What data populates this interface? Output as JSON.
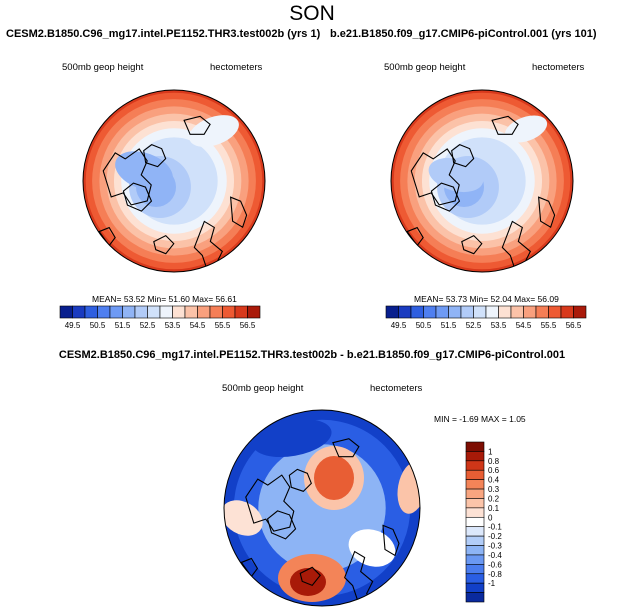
{
  "main_title": "SON",
  "panels": [
    {
      "title": "CESM2.B1850.C96_mg17.intel.PE1152.THR3.test002b (yrs 1)",
      "field_label": "500mb geop height",
      "units": "hectometers",
      "stats": "MEAN=  53.52  Min=  51.60  Max=  56.61",
      "colorbar_ticks": [
        "49.5",
        "50.5",
        "51.5",
        "52.5",
        "53.5",
        "54.5",
        "55.5",
        "56.5"
      ]
    },
    {
      "title": "b.e21.B1850.f09_g17.CMIP6-piControl.001 (yrs 101)",
      "field_label": "500mb geop height",
      "units": "hectometers",
      "stats": "MEAN=  53.73  Min=  52.04  Max=  56.09",
      "colorbar_ticks": [
        "49.5",
        "50.5",
        "51.5",
        "52.5",
        "53.5",
        "54.5",
        "55.5",
        "56.5"
      ]
    }
  ],
  "diff_panel": {
    "title": "CESM2.B1850.C96_mg17.intel.PE1152.THR3.test002b - b.e21.B1850.f09_g17.CMIP6-piControl.001",
    "field_label": "500mb geop height",
    "units": "hectometers",
    "stats": "MIN =  -1.69  MAX =    1.05",
    "colorbar_ticks": [
      "1",
      "0.8",
      "0.6",
      "0.4",
      "0.3",
      "0.2",
      "0.1",
      "0",
      "-0.1",
      "-0.2",
      "-0.3",
      "-0.4",
      "-0.6",
      "-0.8",
      "-1"
    ]
  },
  "chart_data": [
    {
      "type": "heatmap",
      "title": "CESM2.B1850.C96_mg17.intel.PE1152.THR3.test002b (yrs 1)",
      "variable": "500mb geop height",
      "units": "hectometers",
      "mean": 53.52,
      "min": 51.6,
      "max": 56.61,
      "levels": [
        49.5,
        50,
        50.5,
        51,
        51.5,
        52,
        52.5,
        53,
        53.5,
        54,
        54.5,
        55,
        55.5,
        56,
        56.5
      ],
      "colors": [
        "#081f8e",
        "#1a3bc0",
        "#2f5fe0",
        "#4f7ff0",
        "#6e9af4",
        "#90b4f6",
        "#b1cbf8",
        "#d0e1fa",
        "#eef4fc",
        "#fde1d3",
        "#fbc2a8",
        "#f9a07e",
        "#f57e56",
        "#ee5a33",
        "#d8391c",
        "#aa1a0a"
      ]
    },
    {
      "type": "heatmap",
      "title": "b.e21.B1850.f09_g17.CMIP6-piControl.001 (yrs 101)",
      "variable": "500mb geop height",
      "units": "hectometers",
      "mean": 53.73,
      "min": 52.04,
      "max": 56.09,
      "levels": [
        49.5,
        50,
        50.5,
        51,
        51.5,
        52,
        52.5,
        53,
        53.5,
        54,
        54.5,
        55,
        55.5,
        56,
        56.5
      ],
      "colors": [
        "#081f8e",
        "#1a3bc0",
        "#2f5fe0",
        "#4f7ff0",
        "#6e9af4",
        "#90b4f6",
        "#b1cbf8",
        "#d0e1fa",
        "#eef4fc",
        "#fde1d3",
        "#fbc2a8",
        "#f9a07e",
        "#f57e56",
        "#ee5a33",
        "#d8391c",
        "#aa1a0a"
      ]
    },
    {
      "type": "heatmap",
      "title": "CESM2.B1850.C96_mg17.intel.PE1152.THR3.test002b - b.e21.B1850.f09_g17.CMIP6-piControl.001",
      "variable": "500mb geop height",
      "units": "hectometers",
      "min": -1.69,
      "max": 1.05,
      "levels": [
        -1,
        -0.8,
        -0.6,
        -0.4,
        -0.3,
        -0.2,
        -0.1,
        0,
        0.1,
        0.2,
        0.3,
        0.4,
        0.6,
        0.8,
        1
      ],
      "colors": [
        "#0a2a9e",
        "#1240c8",
        "#2a5ee4",
        "#4a7cee",
        "#6a98f2",
        "#8db4f5",
        "#b2cdf8",
        "#dce8fb",
        "#ffffff",
        "#fde2d5",
        "#fbc4a9",
        "#f8a580",
        "#f38458",
        "#e85e34",
        "#cf3618",
        "#a81a08",
        "#7d0d02"
      ]
    }
  ]
}
